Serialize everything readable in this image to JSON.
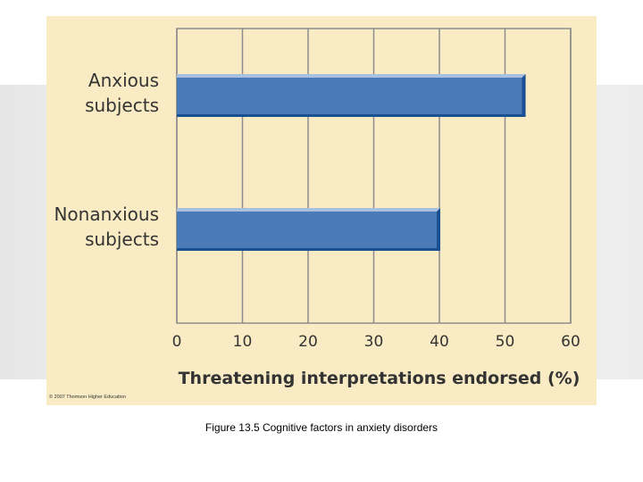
{
  "copyright": "© 2007 Thomson Higher Education",
  "caption": "Figure 13.5 Cognitive factors in anxiety disorders",
  "chart_data": {
    "type": "bar",
    "orientation": "horizontal",
    "categories": [
      [
        "Anxious",
        "subjects"
      ],
      [
        "Nonanxious",
        "subjects"
      ]
    ],
    "values": [
      53,
      40
    ],
    "title": "",
    "xlabel": "Threatening interpretations endorsed (%)",
    "ylabel": "",
    "xlim": [
      0,
      60
    ],
    "xticks": [
      0,
      10,
      20,
      30,
      40,
      50,
      60
    ],
    "grid": true,
    "colors": {
      "bar_face": "#4a7ab8",
      "bar_top": "#a9c1df",
      "bar_side": "#1a4f91",
      "grid": "#8c8c8c",
      "text": "#333333"
    }
  }
}
